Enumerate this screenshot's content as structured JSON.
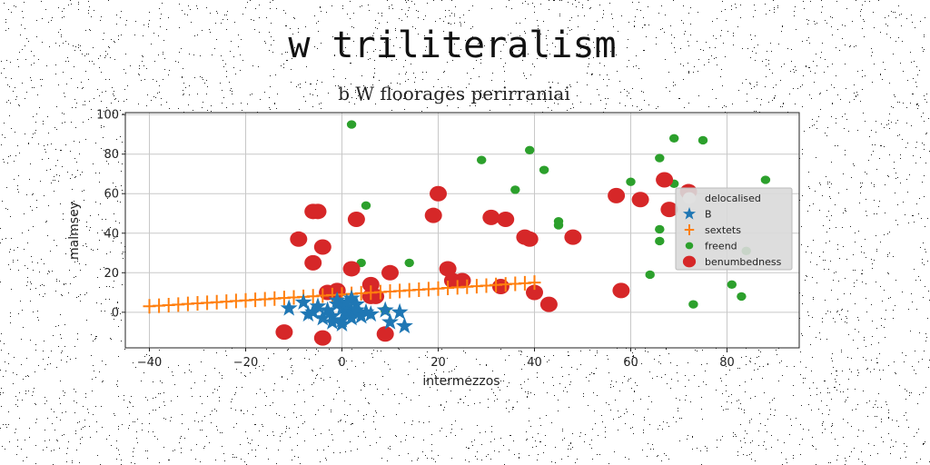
{
  "chart_data": {
    "type": "scatter",
    "title": "w triliteralism",
    "subtitle": "b W floorages perirraniai",
    "xlabel": "intermezzos",
    "ylabel": "malmsey",
    "xlim": [
      -45,
      95
    ],
    "ylim": [
      -18,
      101
    ],
    "x_ticks": [
      -40,
      -20,
      0,
      20,
      40,
      60,
      80
    ],
    "y_ticks": [
      0,
      20,
      40,
      60,
      80,
      100
    ],
    "x_tick_labels": [
      "−40",
      "−20",
      "0",
      "20",
      "40",
      "60",
      "80"
    ],
    "y_tick_labels": [
      "0",
      "20",
      "40",
      "60",
      "80",
      "100"
    ],
    "grid": true,
    "legend_position": "right",
    "series": [
      {
        "name": "delocalised",
        "marker": "circle",
        "color": "#e0e0e0",
        "x": [],
        "y": []
      },
      {
        "name": "B",
        "marker": "star",
        "color": "#1f77b4",
        "x": [
          -11,
          -8,
          -7,
          -6,
          -5,
          -4,
          -3,
          -2,
          -1,
          0,
          0,
          1,
          1,
          2,
          2,
          3,
          3,
          4,
          5,
          6,
          -1,
          0,
          2,
          9,
          10,
          12,
          13,
          -2,
          1,
          4
        ],
        "y": [
          2,
          5,
          -1,
          0,
          3,
          -3,
          1,
          -2,
          4,
          -4,
          2,
          -1,
          3,
          0,
          -3,
          1,
          4,
          -2,
          0,
          -1,
          6,
          -6,
          7,
          1,
          -5,
          0,
          -7,
          -5,
          5,
          -2
        ]
      },
      {
        "name": "sextets",
        "marker": "plus",
        "color": "#ff7f0e",
        "x": [
          -40,
          -38,
          -36,
          -34,
          -32,
          -30,
          -28,
          -26,
          -24,
          -22,
          -20,
          -18,
          -16,
          -14,
          -12,
          -10,
          -8,
          -6,
          -4,
          -2,
          0,
          2,
          4,
          6,
          8,
          10,
          12,
          14,
          16,
          18,
          20,
          22,
          24,
          26,
          28,
          30,
          32,
          34,
          36,
          38,
          40
        ],
        "y": [
          3,
          3.3,
          3.6,
          3.9,
          4.2,
          4.5,
          4.8,
          5.1,
          5.4,
          5.7,
          6,
          6.3,
          6.6,
          6.9,
          7.2,
          7.5,
          7.8,
          8.1,
          8.4,
          8.7,
          9,
          9.3,
          9.6,
          9.9,
          10.2,
          10.5,
          10.8,
          11.1,
          11.4,
          11.7,
          12,
          12.3,
          12.6,
          12.9,
          13.2,
          13.5,
          13.8,
          14.1,
          14.4,
          14.7,
          15
        ]
      },
      {
        "name": "freend",
        "marker": "circle",
        "color": "#2ca02c",
        "x": [
          2,
          5,
          4,
          9,
          14,
          29,
          36,
          39,
          39,
          42,
          45,
          45,
          60,
          64,
          66,
          66,
          66,
          69,
          69,
          73,
          75,
          81,
          83,
          84,
          88
        ],
        "y": [
          95,
          54,
          25,
          1,
          25,
          77,
          62,
          82,
          38,
          72,
          46,
          44,
          66,
          19,
          78,
          42,
          36,
          88,
          65,
          4,
          87,
          14,
          8,
          31,
          67
        ]
      },
      {
        "name": "benumbedness",
        "marker": "circle",
        "color": "#d62728",
        "x": [
          -9,
          -12,
          -6,
          -5,
          -6,
          -4,
          -4,
          -3,
          -1,
          2,
          3,
          6,
          6,
          7,
          10,
          9,
          19,
          20,
          22,
          23,
          25,
          31,
          34,
          33,
          39,
          38,
          40,
          43,
          48,
          57,
          58,
          62,
          67,
          68,
          72
        ],
        "y": [
          37,
          -10,
          51,
          51,
          25,
          -13,
          33,
          10,
          11,
          22,
          47,
          14,
          8,
          8,
          20,
          -11,
          49,
          60,
          22,
          16,
          16,
          48,
          47,
          13,
          37,
          38,
          10,
          4,
          38,
          59,
          11,
          57,
          67,
          52,
          61
        ]
      }
    ]
  }
}
